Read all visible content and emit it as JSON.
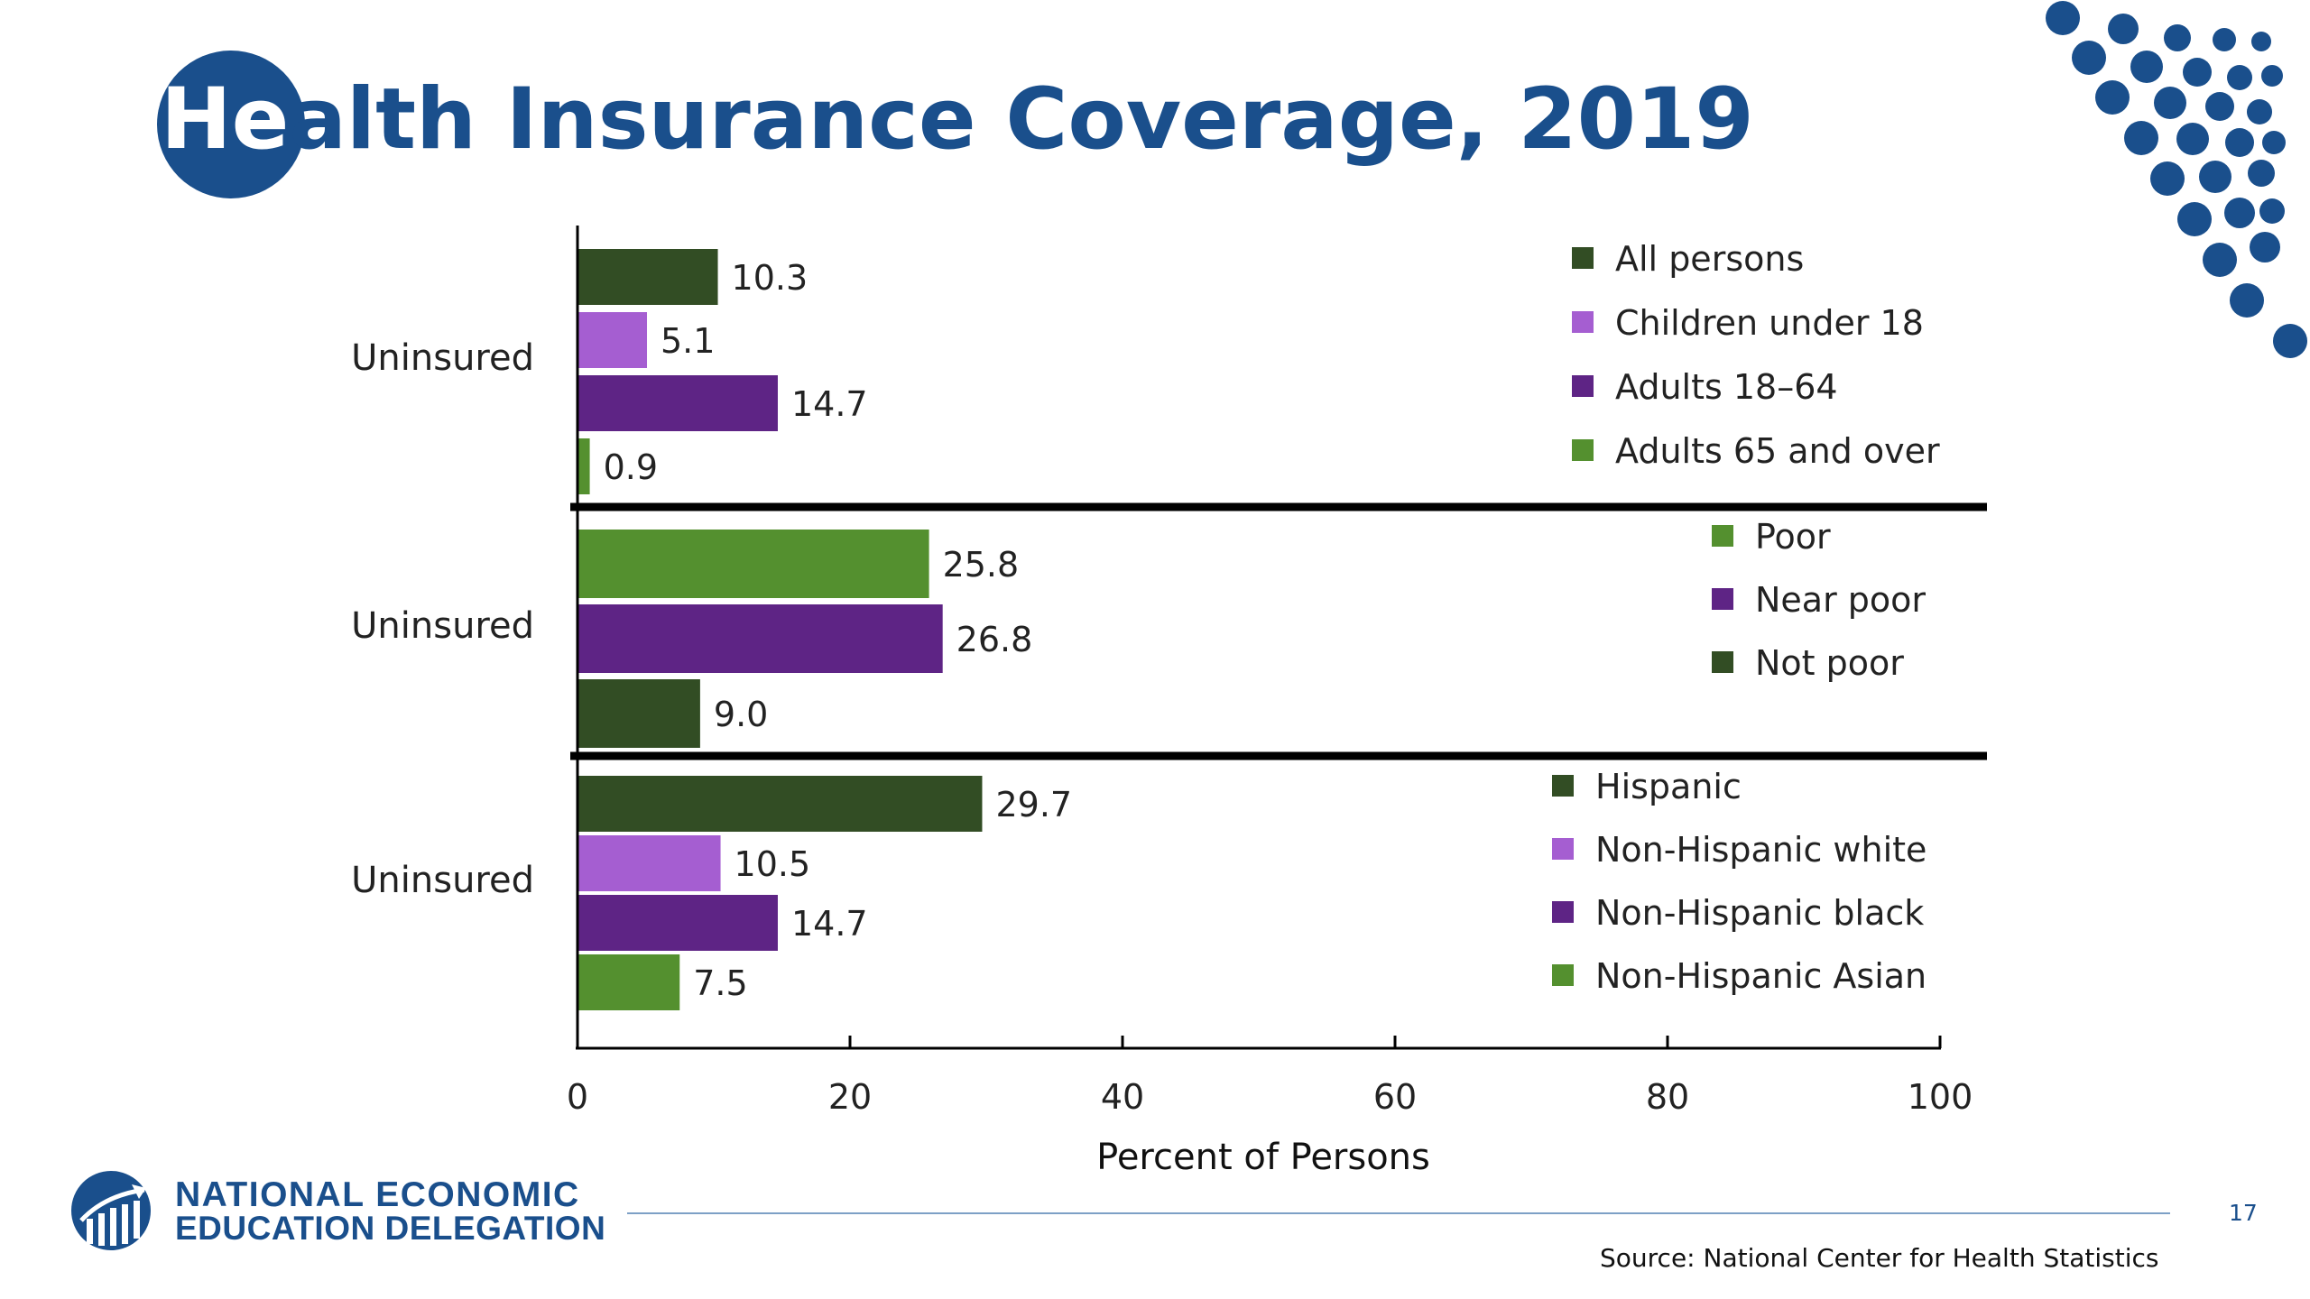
{
  "slide": {
    "title_lead": "He",
    "title_rest": "alth Insurance Coverage, 2019",
    "page_number": "17",
    "source": "Source: National Center for Health Statistics",
    "logo_line1": "NATIONAL ECONOMIC",
    "logo_line2": "EDUCATION DELEGATION"
  },
  "colors": {
    "brand_blue": "#1a4f8c",
    "dark_green": "#324d24",
    "light_purple": "#a55ed1",
    "purple": "#5e2485",
    "green": "#54902f"
  },
  "chart_data": {
    "type": "bar",
    "orientation": "horizontal",
    "title": "",
    "xlabel": "Percent of Persons",
    "ylabel": "",
    "xlim": [
      0,
      100
    ],
    "x_ticks": [
      "0",
      "20",
      "40",
      "60",
      "80",
      "100"
    ],
    "grid": false,
    "legend_position": "right",
    "groups": [
      {
        "category_label": "Uninsured",
        "bars": [
          {
            "name": "All persons",
            "value": 10.3,
            "label": "10.3",
            "color": "#324d24"
          },
          {
            "name": "Children under 18",
            "value": 5.1,
            "label": "5.1",
            "color": "#a55ed1"
          },
          {
            "name": "Adults 18–64",
            "value": 14.7,
            "label": "14.7",
            "color": "#5e2485"
          },
          {
            "name": "Adults 65 and over",
            "value": 0.9,
            "label": "0.9",
            "color": "#54902f"
          }
        ]
      },
      {
        "category_label": "Uninsured",
        "bars": [
          {
            "name": "Poor",
            "value": 25.8,
            "label": "25.8",
            "color": "#54902f"
          },
          {
            "name": "Near poor",
            "value": 26.8,
            "label": "26.8",
            "color": "#5e2485"
          },
          {
            "name": "Not poor",
            "value": 9.0,
            "label": "9.0",
            "color": "#324d24"
          }
        ]
      },
      {
        "category_label": "Uninsured",
        "bars": [
          {
            "name": "Hispanic",
            "value": 29.7,
            "label": "29.7",
            "color": "#324d24"
          },
          {
            "name": "Non-Hispanic white",
            "value": 10.5,
            "label": "10.5",
            "color": "#a55ed1"
          },
          {
            "name": "Non-Hispanic  black",
            "value": 14.7,
            "label": "14.7",
            "color": "#5e2485"
          },
          {
            "name": "Non-Hispanic Asian",
            "value": 7.5,
            "label": "7.5",
            "color": "#54902f"
          }
        ]
      }
    ]
  }
}
